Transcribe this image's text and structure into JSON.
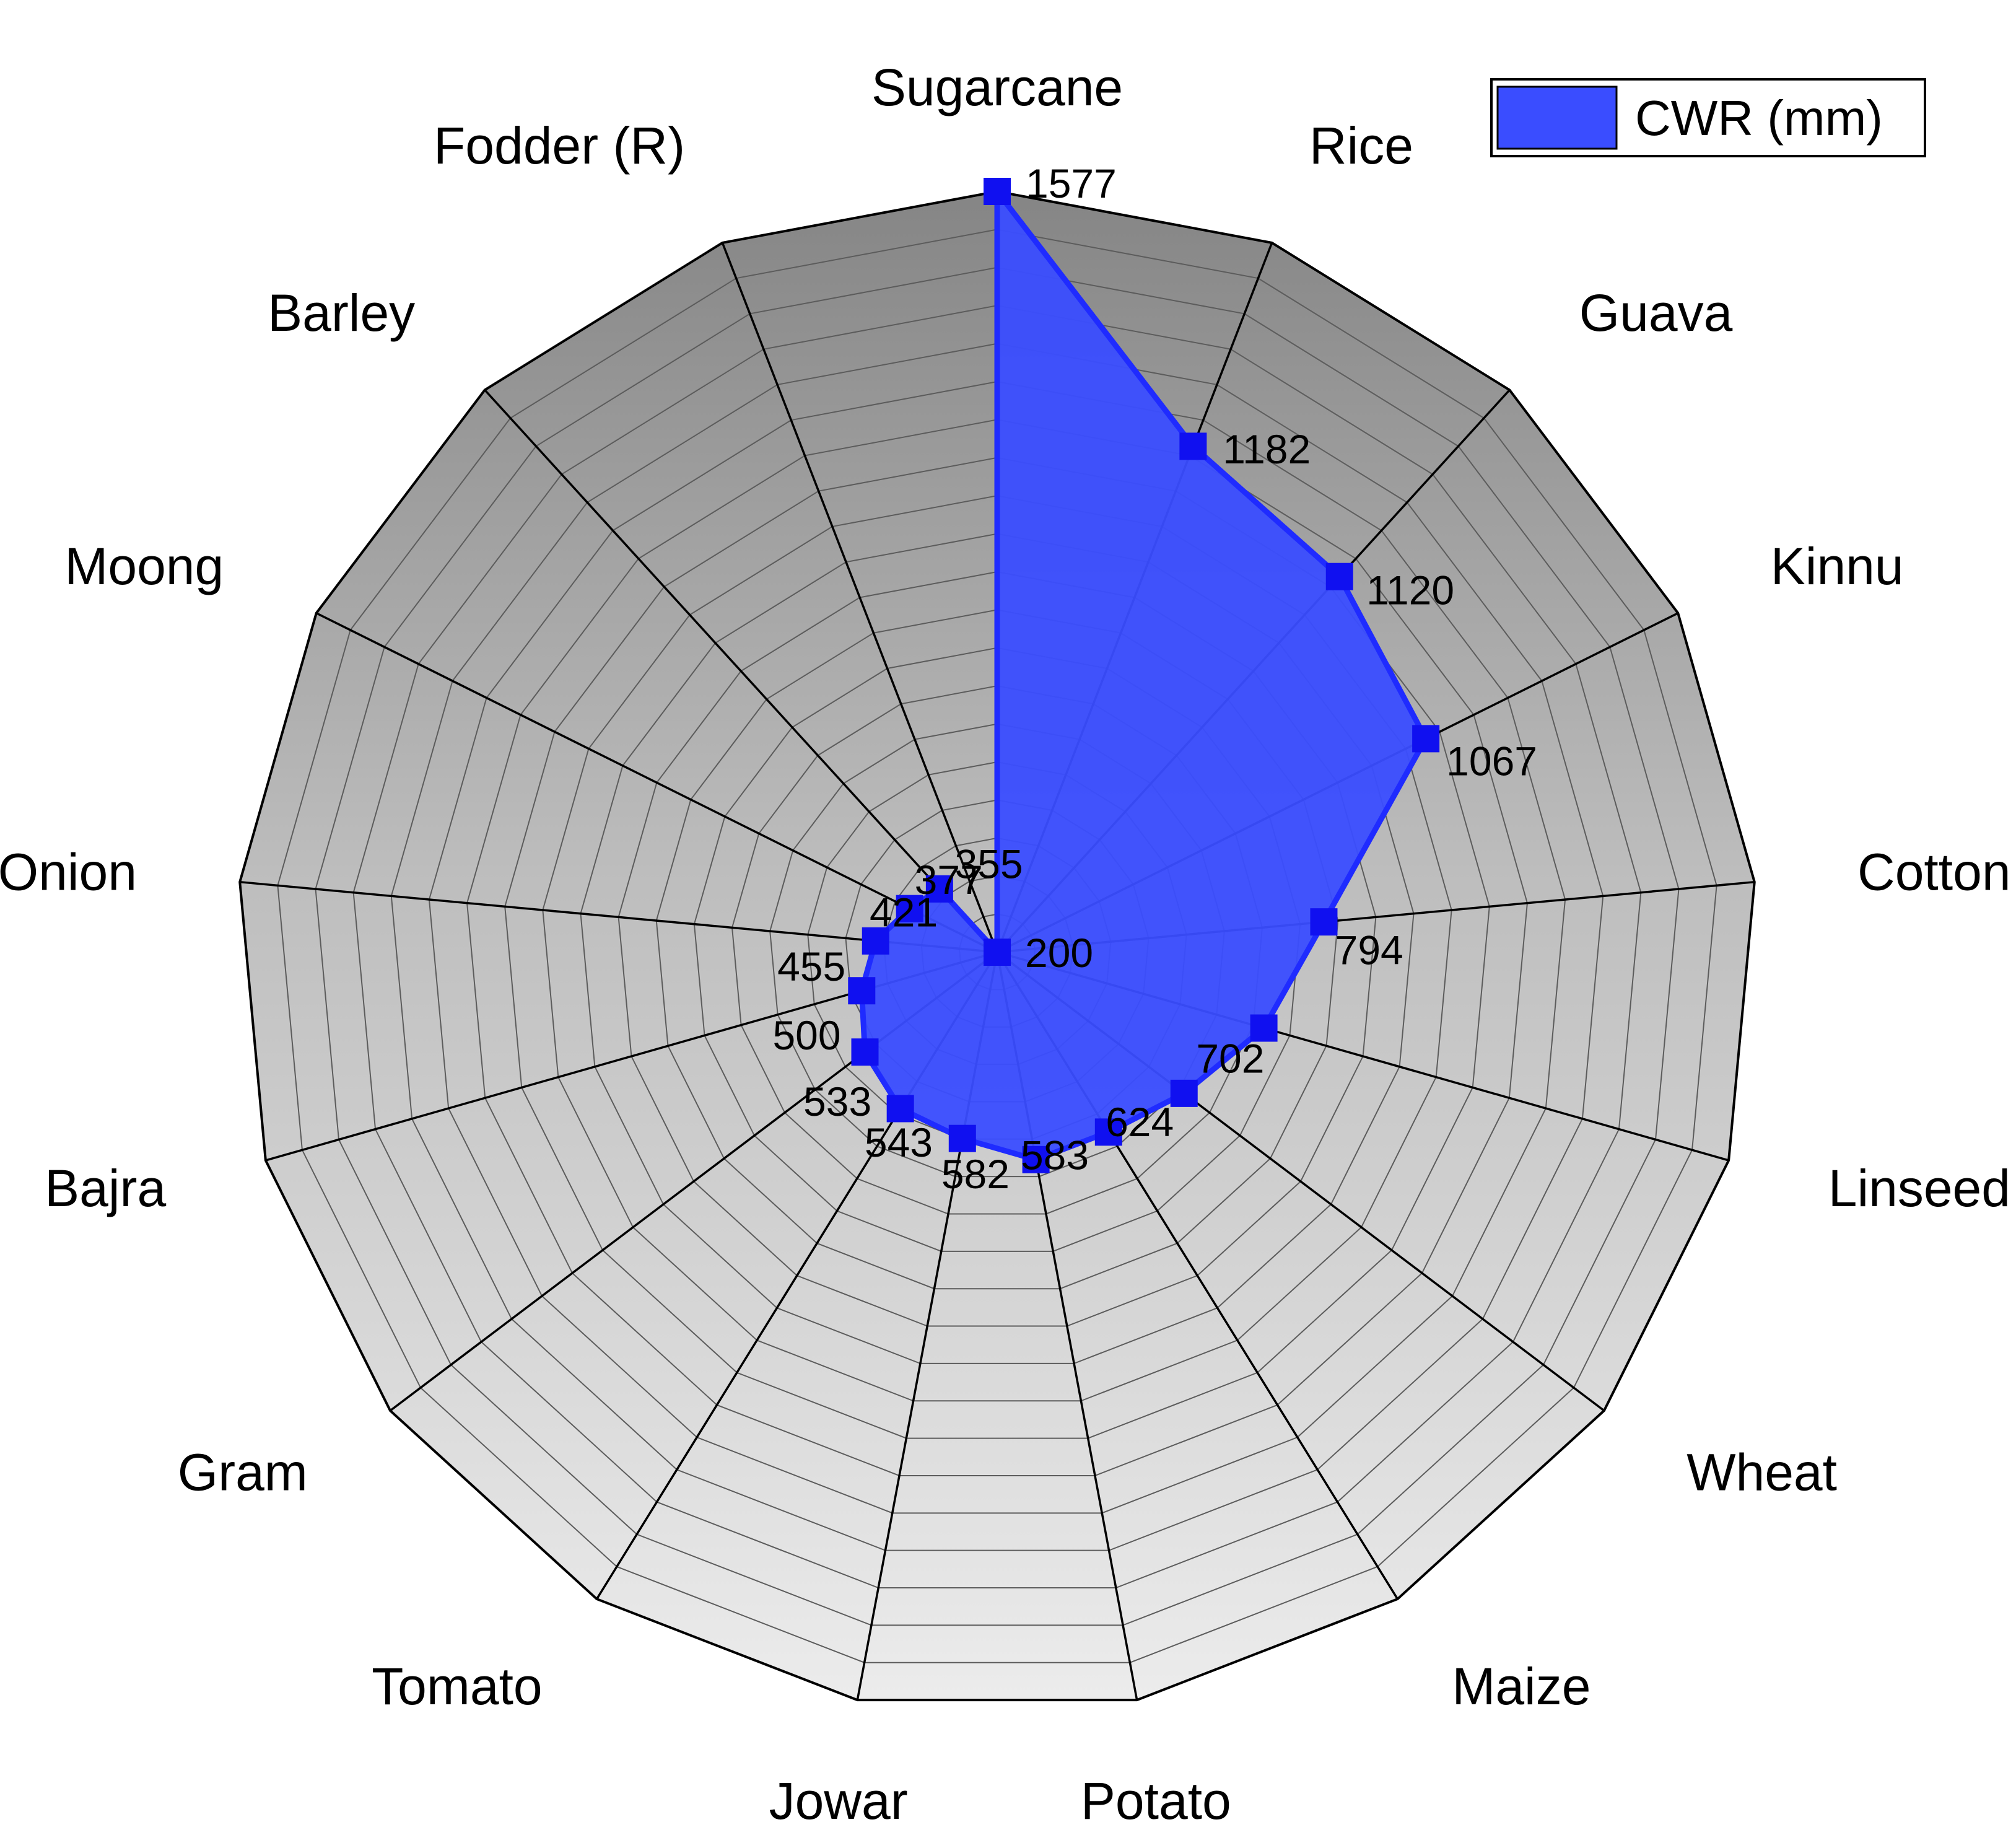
{
  "chart_data": {
    "type": "radar",
    "legend": {
      "label": "CWR (mm)",
      "placement": "top-right",
      "color": "#3a4dff"
    },
    "r_range": [
      200,
      1577
    ],
    "ring_count": 20,
    "categories": [
      "Sugarcane",
      "Rice",
      "Guava",
      "Kinnu",
      "Cotton",
      "Linseed",
      "Wheat",
      "Maize",
      "Potato",
      "Jowar",
      "Tomato",
      "Gram",
      "Bajra",
      "Onion",
      "Moong",
      "Barley",
      "Fodder (R)"
    ],
    "values": [
      1577,
      1182,
      1120,
      1067,
      794,
      702,
      624,
      583,
      582,
      543,
      533,
      500,
      455,
      421,
      377,
      355,
      200
    ],
    "value_labels": [
      "1577",
      "1182",
      "1120",
      "1067",
      "794",
      "702",
      "624",
      "583",
      "582",
      "543",
      "533",
      "500",
      "455",
      "421",
      "377",
      "355",
      "200"
    ],
    "colors": {
      "fill": "#3a4dff",
      "line": "#1f2bff",
      "marker": "#1010f0",
      "grid_outer": "#8a8a8a",
      "grid_inner": "#e9e9e9"
    }
  }
}
